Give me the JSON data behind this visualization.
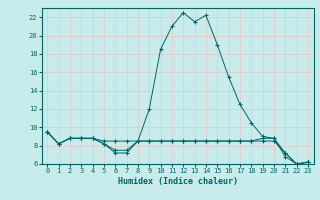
{
  "xlabel": "Humidex (Indice chaleur)",
  "bg_color": "#c8ecec",
  "grid_color": "#f0c0c0",
  "line_color": "#006666",
  "xlim": [
    -0.5,
    23.5
  ],
  "ylim": [
    6,
    23
  ],
  "yticks": [
    6,
    8,
    10,
    12,
    14,
    16,
    18,
    20,
    22
  ],
  "xticks": [
    0,
    1,
    2,
    3,
    4,
    5,
    6,
    7,
    8,
    9,
    10,
    11,
    12,
    13,
    14,
    15,
    16,
    17,
    18,
    19,
    20,
    21,
    22,
    23
  ],
  "line1_x": [
    0,
    1,
    2,
    3,
    4,
    5,
    6,
    7,
    8,
    9,
    10,
    11,
    12,
    13,
    14,
    15,
    16,
    17,
    18,
    19,
    20,
    21,
    22,
    23
  ],
  "line1_y": [
    9.5,
    8.2,
    8.8,
    8.8,
    8.8,
    8.2,
    7.2,
    7.2,
    8.5,
    12.0,
    18.5,
    21.0,
    22.5,
    21.5,
    22.2,
    19.0,
    15.5,
    12.5,
    10.5,
    9.0,
    8.8,
    6.8,
    6.0,
    6.2
  ],
  "line2_x": [
    0,
    1,
    2,
    3,
    4,
    5,
    6,
    7,
    8,
    9,
    10,
    11,
    12,
    13,
    14,
    15,
    16,
    17,
    18,
    19,
    20,
    21,
    22,
    23
  ],
  "line2_y": [
    9.5,
    8.2,
    8.8,
    8.8,
    8.8,
    8.2,
    7.5,
    7.5,
    8.5,
    8.5,
    8.5,
    8.5,
    8.5,
    8.5,
    8.5,
    8.5,
    8.5,
    8.5,
    8.5,
    8.8,
    8.8,
    7.2,
    6.0,
    6.2
  ],
  "line3_x": [
    0,
    1,
    2,
    3,
    4,
    5,
    6,
    7,
    8,
    9,
    10,
    11,
    12,
    13,
    14,
    15,
    16,
    17,
    18,
    19,
    20,
    21,
    22,
    23
  ],
  "line3_y": [
    9.5,
    8.2,
    8.8,
    8.8,
    8.8,
    8.5,
    8.5,
    8.5,
    8.5,
    8.5,
    8.5,
    8.5,
    8.5,
    8.5,
    8.5,
    8.5,
    8.5,
    8.5,
    8.5,
    8.5,
    8.5,
    7.2,
    6.0,
    6.2
  ]
}
